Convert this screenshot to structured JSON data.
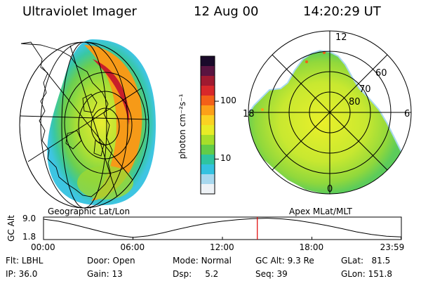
{
  "header": {
    "instrument": "Ultraviolet Imager",
    "date": "12 Aug 00",
    "time": "14:20:29 UT"
  },
  "panels": {
    "left_label": "Geographic Lat/Lon",
    "right_label": "Apex MLat/MLT"
  },
  "polar_labels": {
    "lat": [
      "80",
      "70",
      "60"
    ],
    "mlt": [
      "12",
      "18",
      "6",
      "0"
    ]
  },
  "colorbar": {
    "label": "photon cm⁻²s⁻¹",
    "ticks": [
      "100",
      "10"
    ],
    "tick_values": [
      100,
      10
    ],
    "scale": "log",
    "colors": [
      "#1a0a2a",
      "#5a1440",
      "#a01a30",
      "#d8282a",
      "#f36018",
      "#fca018",
      "#fad222",
      "#e8ec26",
      "#a6de2a",
      "#62cc48",
      "#2ec4a0",
      "#34c2e0",
      "#a8d8ee",
      "#eef2f6"
    ]
  },
  "chart_data": {
    "type": "line",
    "title": "",
    "ylabel": "GC Alt",
    "yticks": [
      "9.0",
      "1.8"
    ],
    "ytick_values": [
      9.0,
      1.8
    ],
    "ylim": [
      1.8,
      9.0
    ],
    "xticks": [
      "00:00",
      "06:00",
      "12:00",
      "18:00",
      "23:59"
    ],
    "xtick_hours": [
      0,
      6,
      12,
      18,
      23.983
    ],
    "series": [
      {
        "x": [
          0,
          1,
          2,
          3,
          4,
          5,
          6,
          7,
          8,
          9,
          10,
          11,
          12,
          13,
          14,
          15,
          16,
          17,
          18,
          19,
          20,
          21,
          22,
          23,
          23.983
        ],
        "y": [
          9.0,
          8.2,
          6.9,
          5.4,
          3.9,
          2.6,
          1.8,
          2.4,
          3.6,
          5.0,
          6.3,
          7.4,
          8.2,
          8.8,
          9.2,
          9.4,
          9.1,
          8.5,
          7.6,
          6.5,
          5.3,
          4.0,
          3.0,
          2.3,
          2.0
        ]
      }
    ],
    "marker": {
      "hour": 14.34,
      "color": "#e00000"
    }
  },
  "status": {
    "flt_label": "Flt:",
    "flt_value": "LBHL",
    "ip_label": "IP:",
    "ip_value": "36.0",
    "door_label": "Door:",
    "door_value": "Open",
    "gain_label": "Gain:",
    "gain_value": "13",
    "mode_label": "Mode:",
    "mode_value": "Normal",
    "dsp_label": "Dsp:",
    "dsp_value": "5.2",
    "gcalt_label": "GC Alt:",
    "gcalt_value": "9.3 Re",
    "seq_label": "Seq:",
    "seq_value": "39",
    "glat_label": "GLat:",
    "glat_value": "81.5",
    "glon_label": "GLon:",
    "glon_value": "151.8"
  }
}
